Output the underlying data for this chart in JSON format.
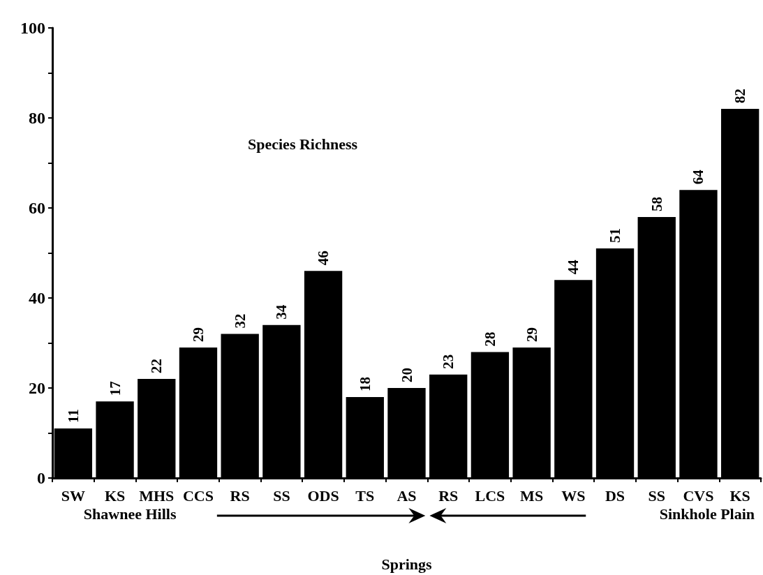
{
  "chart_data": {
    "type": "bar",
    "title": "Species Richness",
    "xlabel": "Springs",
    "categories": [
      "SW",
      "KS",
      "MHS",
      "CCS",
      "RS",
      "SS",
      "ODS",
      "TS",
      "AS",
      "RS",
      "LCS",
      "MS",
      "WS",
      "DS",
      "SS",
      "CVS",
      "KS"
    ],
    "values": [
      11,
      17,
      22,
      29,
      32,
      34,
      46,
      18,
      20,
      23,
      28,
      29,
      44,
      51,
      58,
      64,
      82
    ],
    "color": "#000000",
    "ylim": [
      0,
      100
    ],
    "yticks": [
      0,
      {
        "value": 10,
        "label": null
      },
      20,
      {
        "value": 30,
        "label": null
      },
      40,
      {
        "value": 50,
        "label": null
      },
      60,
      {
        "value": 70,
        "label": null
      },
      80,
      {
        "value": 90,
        "label": null
      },
      100
    ],
    "data_labels": true,
    "grid": false,
    "annotations": [
      "Shawnee Hills",
      "Sinkhole Plain"
    ]
  }
}
